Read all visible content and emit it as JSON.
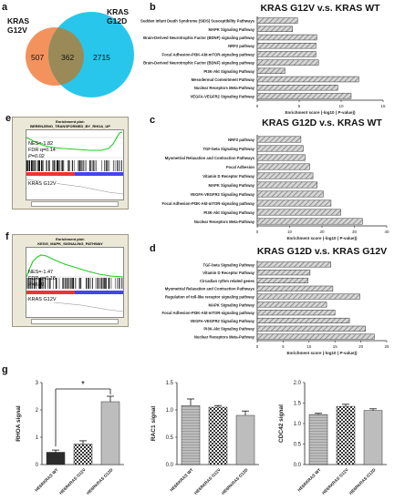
{
  "venn": {
    "panel_label": "a",
    "left_label": "KRAS\nG12V",
    "right_label": "KRAS\nG12D",
    "left_only": "507",
    "overlap": "362",
    "right_only": "2715",
    "left_color": "#f4925e",
    "right_color": "#29c6ec"
  },
  "gsea_e": {
    "panel_label": "e",
    "title": "Enrichment plot:",
    "subtitle": "BERENJENO_TRANSFORMED_BY_RHOA_UP",
    "nes": "NES=-1.82",
    "fdr": "FDR q=0.14",
    "p": "P=0.02",
    "group": "KRAS G12V"
  },
  "gsea_f": {
    "panel_label": "f",
    "title": "Enrichment plot:",
    "subtitle": "KEGG_MAPK_SIGNALING_PATHWAY",
    "nes": "NES=-1.47",
    "fdr": "FDR q=0.18",
    "p": "P=0.01",
    "group": "KRAS G12V"
  },
  "sig_label": "*",
  "chart_data": [
    {
      "panel_label": "b",
      "type": "bar",
      "orientation": "horizontal",
      "title": "KRAS G12V v.s. KRAS WT",
      "xlabel": "Enrichment score (-log10 ( P-value))",
      "xlim": [
        0,
        15
      ],
      "xticks": [
        "0",
        "5",
        "10",
        "15"
      ],
      "categories": [
        "Sudden Infant Death Syndrome (SIDS) Susceptibility Pathways",
        "MAPK Signaling Pathway",
        "Brain-Derived Neurotrophic Factor (BDNF) signaling pathway",
        "NRF2 pathway",
        "Focal Adhesion-PI3K-Akt-mTOR-signaling pathway",
        "Brain-Derived Neurotrophic Factor (BDNF) signaling pathway",
        "PI3K-Akt Signaling Pathway",
        "Mesodermal Commitment Pathway",
        "Nuclear Receptors Meta-Pathway",
        "VEGFA-VEGFR2 Signaling Pathway"
      ],
      "values": [
        4.8,
        4.2,
        7.1,
        7.0,
        7.0,
        7.3,
        3.3,
        12.1,
        9.6,
        11.2
      ]
    },
    {
      "panel_label": "c",
      "type": "bar",
      "orientation": "horizontal",
      "title": "KRAS G12D v.s. KRAS WT",
      "xlabel": "Enrichment score (-log10 ( P-value))",
      "xlim": [
        0,
        40
      ],
      "xticks": [
        "0",
        "10",
        "20",
        "30",
        "40"
      ],
      "categories": [
        "NRF2 pathway",
        "TGF-beta Signaling Pathway",
        "Myometrial Relaxation and Contraction Pathways",
        "Focal Adhesion",
        "Vitamin D Receptor Pathway",
        "MAPK Signaling Pathway",
        "VEGFA-VEGFR2 Signaling Pathway",
        "Focal Adhesion-PI3K-Akt-mTOR-signaling pathway",
        "PI3K-Akt Signaling Pathway",
        "Nuclear Receptors Meta-Pathway"
      ],
      "values": [
        13.5,
        14.2,
        14.8,
        16.2,
        17.2,
        18.5,
        20.4,
        22.8,
        25.8,
        32.5
      ]
    },
    {
      "panel_label": "d",
      "type": "bar",
      "orientation": "horizontal",
      "title": "KRAS G12D v.s. KRAS G12V",
      "xlabel": "Enrichment score (-log10 ( P-value))",
      "xlim": [
        0,
        25
      ],
      "xticks": [
        "0",
        "5",
        "10",
        "15",
        "20",
        "25"
      ],
      "categories": [
        "TGF-beta Signaling Pathway",
        "Vitamin D Receptor Pathway",
        "Circadian rythm related genes",
        "Myometrial Relaxation and Contraction Pathways",
        "Regulation of toll-like receptor signaling pathway",
        "MAPK Signaling Pathway",
        "Focal Adhesion-PI3K-Akt-mTOR-signaling pathway",
        "VEGFA-VEGFR2 Signaling Pathway",
        "PI3K-Akt Signaling Pathway",
        "Nuclear Receptors Meta-Pathway"
      ],
      "values": [
        14.2,
        10.2,
        9.8,
        14.6,
        19.8,
        13.4,
        15.0,
        17.8,
        20.9,
        22.6
      ]
    },
    {
      "panel_label": "g",
      "type": "bar",
      "ylabel": "RHOA signal",
      "ylim": [
        0,
        3
      ],
      "yticks": [
        "0",
        "1",
        "2",
        "3"
      ],
      "categories": [
        "HE6RKRAS WT",
        "HE6RKRAS G12V",
        "HE6RKRAS G12D"
      ],
      "values": [
        0.45,
        0.75,
        2.3
      ],
      "errors": [
        0.08,
        0.12,
        0.2
      ]
    },
    {
      "type": "bar",
      "ylabel": "RAC1 signal",
      "ylim": [
        0,
        1.5
      ],
      "yticks": [
        "0.0",
        "0.5",
        "1.0",
        "1.5"
      ],
      "categories": [
        "HE6RKRAS WT",
        "HE6RKRAS G12V",
        "HE6RKRAS G12D"
      ],
      "values": [
        1.08,
        1.05,
        0.9
      ],
      "errors": [
        0.12,
        0.03,
        0.08
      ]
    },
    {
      "type": "bar",
      "ylabel": "CDC42 signal",
      "ylim": [
        0,
        2.0
      ],
      "yticks": [
        "0.0",
        "0.5",
        "1.0",
        "1.5",
        "2.0"
      ],
      "categories": [
        "HE6RKRAS WT",
        "HE6RKRAS G12V",
        "HE6RKRAS G12D"
      ],
      "values": [
        1.22,
        1.42,
        1.32
      ],
      "errors": [
        0.03,
        0.05,
        0.04
      ]
    }
  ]
}
